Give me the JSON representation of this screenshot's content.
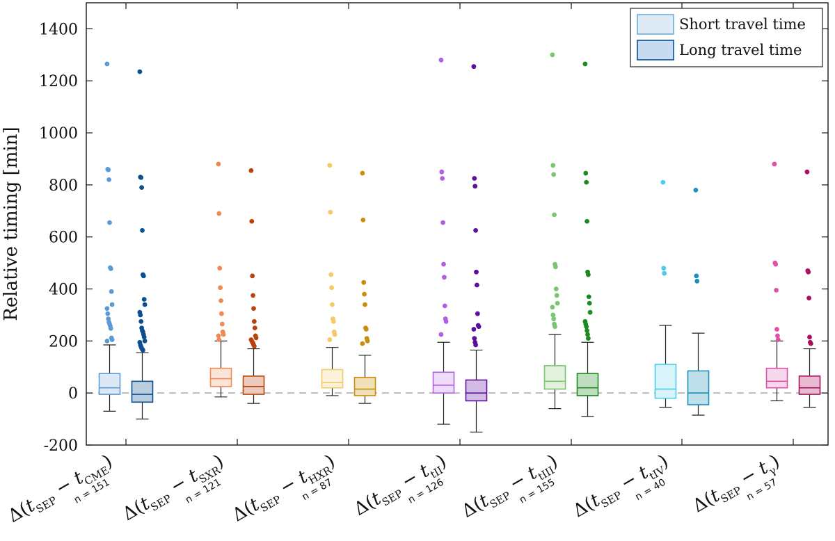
{
  "chart_data": {
    "type": "box",
    "ylabel": "Relative timing [min]",
    "ylim": [
      -200,
      1500
    ],
    "yticks": [
      -200,
      0,
      200,
      400,
      600,
      800,
      1000,
      1200,
      1400
    ],
    "reference_line_y": 0,
    "grid": false,
    "legend_position": "top-right",
    "legend": [
      {
        "label": "Short travel time",
        "fill": "#deebf7",
        "edge": "#6baed6"
      },
      {
        "label": "Long travel time",
        "fill": "#c6dbef",
        "edge": "#08519c"
      }
    ],
    "categories": [
      {
        "delta": "Δ(",
        "t1": "t",
        "sep": "SEP",
        "minus": " − ",
        "t2": "t",
        "sub": "CME",
        "close": ")",
        "n": "n = 151",
        "color_short": "#5b9bd5",
        "color_long": "#0b4f8f"
      },
      {
        "delta": "Δ(",
        "t1": "t",
        "sep": "SEP",
        "minus": " − ",
        "t2": "t",
        "sub": "SXR",
        "close": ")",
        "n": "n = 121",
        "color_short": "#ef8a54",
        "color_long": "#b8430c"
      },
      {
        "delta": "Δ(",
        "t1": "t",
        "sep": "SEP",
        "minus": " − ",
        "t2": "t",
        "sub": "HXR",
        "close": ")",
        "n": "n = 87",
        "color_short": "#f5c965",
        "color_long": "#c8900a"
      },
      {
        "delta": "Δ(",
        "t1": "t",
        "sep": "SEP",
        "minus": " − ",
        "t2": "t",
        "sub": "tII",
        "close": ")",
        "n": "n = 126",
        "color_short": "#b05fe0",
        "color_long": "#5d0e9c"
      },
      {
        "delta": "Δ(",
        "t1": "t",
        "sep": "SEP",
        "minus": " − ",
        "t2": "t",
        "sub": "tIII",
        "close": ")",
        "n": "n = 155",
        "color_short": "#79c66f",
        "color_long": "#1b8a1f"
      },
      {
        "delta": "Δ(",
        "t1": "t",
        "sep": "SEP",
        "minus": " − ",
        "t2": "t",
        "sub": "tIV",
        "close": ")",
        "n": "n = 40",
        "color_short": "#4ccbe8",
        "color_long": "#1b90b8"
      },
      {
        "delta": "Δ(",
        "t1": "t",
        "sep": "SEP",
        "minus": " − ",
        "t2": "t",
        "sub": "γ",
        "close": ")",
        "n": "n = 57",
        "color_short": "#e04fa8",
        "color_long": "#a8105e"
      }
    ],
    "series": [
      {
        "name": "Short travel time",
        "boxes": [
          {
            "wlow": -70,
            "q1": -5,
            "median": 20,
            "q3": 75,
            "whigh": 185,
            "outliers": [
              1265,
              860,
              858,
              820,
              655,
              482,
              478,
              390,
              340,
              325,
              305,
              285,
              272,
              265,
              258,
              248,
              212,
              205,
              200
            ]
          },
          {
            "wlow": -15,
            "q1": 25,
            "median": 55,
            "q3": 95,
            "whigh": 200,
            "outliers": [
              880,
              690,
              480,
              405,
              355,
              305,
              265,
              235,
              225,
              220,
              205
            ]
          },
          {
            "wlow": -10,
            "q1": 20,
            "median": 40,
            "q3": 90,
            "whigh": 175,
            "outliers": [
              875,
              695,
              455,
              405,
              340,
              285,
              275,
              235,
              225,
              205
            ]
          },
          {
            "wlow": -120,
            "q1": 0,
            "median": 30,
            "q3": 80,
            "whigh": 195,
            "outliers": [
              1280,
              850,
              825,
              655,
              495,
              445,
              335,
              285,
              275,
              225
            ]
          },
          {
            "wlow": -60,
            "q1": 15,
            "median": 45,
            "q3": 105,
            "whigh": 225,
            "outliers": [
              1300,
              875,
              840,
              685,
              495,
              485,
              400,
              375,
              345,
              330,
              300,
              285,
              265,
              255
            ]
          },
          {
            "wlow": -55,
            "q1": -20,
            "median": 15,
            "q3": 110,
            "whigh": 260,
            "outliers": [
              810,
              480,
              460
            ]
          },
          {
            "wlow": -30,
            "q1": 20,
            "median": 45,
            "q3": 95,
            "whigh": 200,
            "outliers": [
              880,
              500,
              495,
              395,
              245,
              220,
              205
            ]
          }
        ]
      },
      {
        "name": "Long travel time",
        "boxes": [
          {
            "wlow": -100,
            "q1": -35,
            "median": -5,
            "q3": 45,
            "whigh": 155,
            "outliers": [
              1235,
              830,
              828,
              790,
              625,
              455,
              450,
              360,
              340,
              310,
              300,
              275,
              250,
              240,
              235,
              225,
              215,
              200,
              195,
              185,
              178,
              172,
              168,
              165
            ]
          },
          {
            "wlow": -40,
            "q1": -5,
            "median": 25,
            "q3": 65,
            "whigh": 170,
            "outliers": [
              855,
              660,
              450,
              375,
              325,
              275,
              250,
              220,
              212,
              205,
              200,
              195,
              192,
              185,
              180
            ]
          },
          {
            "wlow": -40,
            "q1": -10,
            "median": 15,
            "q3": 60,
            "whigh": 145,
            "outliers": [
              845,
              665,
              425,
              380,
              340,
              250,
              245,
              210,
              200,
              190
            ]
          },
          {
            "wlow": -150,
            "q1": -30,
            "median": 0,
            "q3": 50,
            "whigh": 165,
            "outliers": [
              1255,
              825,
              795,
              625,
              465,
              415,
              305,
              260,
              255,
              245,
              210,
              195,
              185
            ]
          },
          {
            "wlow": -90,
            "q1": -10,
            "median": 20,
            "q3": 75,
            "whigh": 195,
            "outliers": [
              1265,
              845,
              810,
              660,
              465,
              455,
              370,
              345,
              310,
              275,
              265,
              255,
              240,
              225,
              210
            ]
          },
          {
            "wlow": -85,
            "q1": -45,
            "median": 0,
            "q3": 85,
            "whigh": 230,
            "outliers": [
              780,
              450,
              430
            ]
          },
          {
            "wlow": -55,
            "q1": -5,
            "median": 20,
            "q3": 65,
            "whigh": 170,
            "outliers": [
              850,
              470,
              465,
              365,
              215,
              195,
              190
            ]
          }
        ]
      }
    ]
  }
}
